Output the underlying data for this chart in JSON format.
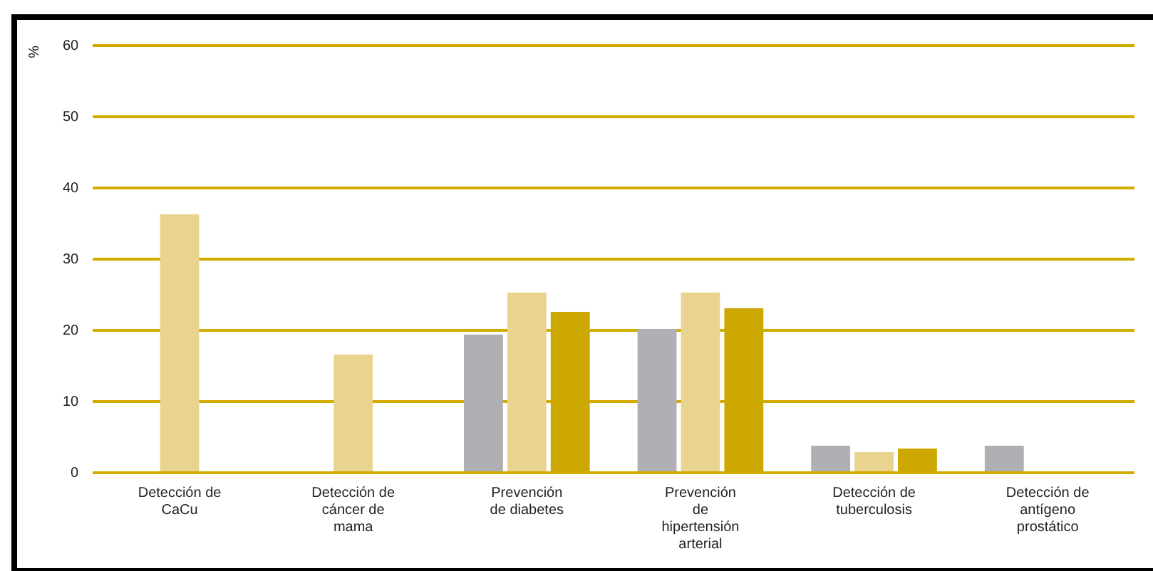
{
  "chart_data": {
    "type": "bar",
    "ylabel": "%",
    "categories": [
      "Detección de CaCu",
      "Detección de cáncer de mama",
      "Prevención de diabetes",
      "Prevención de hipertensión arterial",
      "Detección de tuberculosis",
      "Detección de antígeno prostático"
    ],
    "series": [
      {
        "color": "#b0afb4",
        "values": [
          null,
          null,
          19.4,
          20.2,
          3.8,
          3.8
        ]
      },
      {
        "color": "#e8d48f",
        "values": [
          36.3,
          16.6,
          25.3,
          25.3,
          2.9,
          null
        ]
      },
      {
        "color": "#cca800",
        "values": [
          null,
          null,
          22.6,
          23.1,
          3.4,
          null
        ]
      }
    ],
    "ylim": [
      0,
      60
    ],
    "yticks": [
      0,
      10,
      20,
      30,
      40,
      50,
      60
    ],
    "grid": "y",
    "legend": false
  }
}
